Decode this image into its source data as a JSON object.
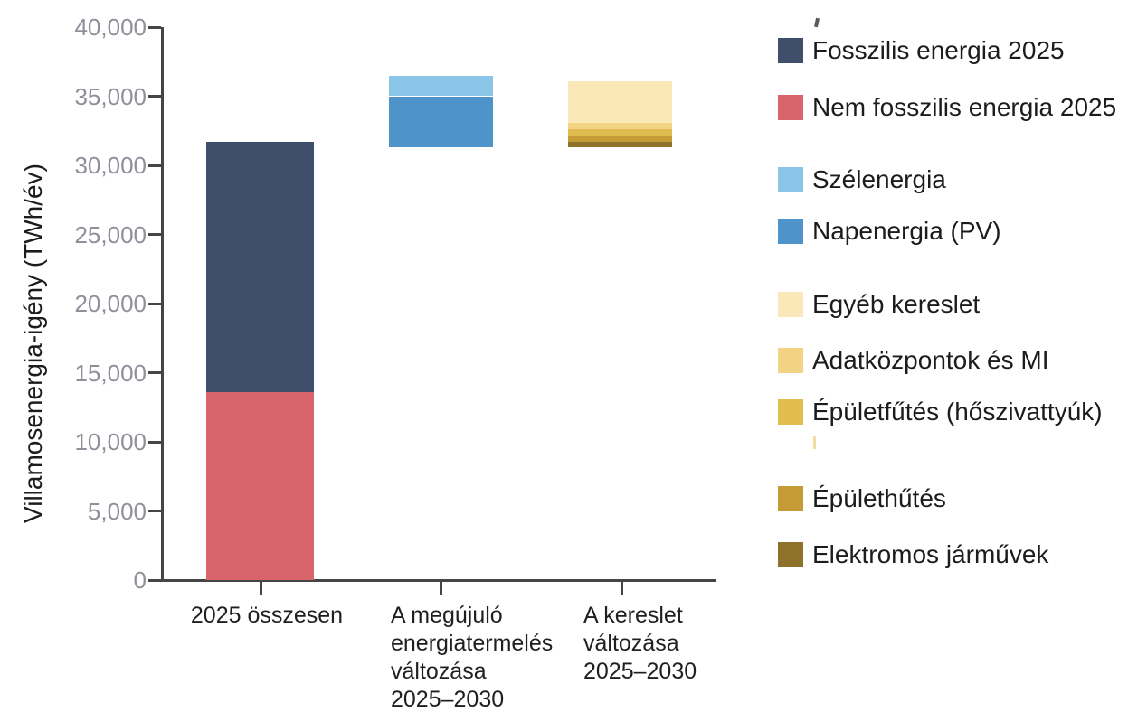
{
  "chart_data": {
    "type": "bar",
    "stacked": true,
    "title": "",
    "xlabel": "",
    "ylabel": "Villamosenergia-igény (TWh/év)",
    "ylim": [
      0,
      40000
    ],
    "ytick_interval": 5000,
    "ytick_labels": [
      "0",
      "5,000",
      "10,000",
      "15,000",
      "20,000",
      "25,000",
      "30,000",
      "35,000",
      "40,000"
    ],
    "grid": false,
    "legend_position": "right",
    "categories": [
      "2025 összesen",
      "A megújuló energiatermelés változása 2025–2030",
      "A kereslet változása 2025–2030"
    ],
    "category_label_lines": [
      [
        "2025 összesen"
      ],
      [
        "A megújuló",
        "energiatermelés",
        "változása",
        "2025–2030"
      ],
      [
        "A kereslet",
        "változása",
        "2025–2030"
      ]
    ],
    "bars": [
      {
        "category": "2025 összesen",
        "segments": [
          {
            "name": "Nem fosszilis energia 2025",
            "color": "#D8656B",
            "from": 0,
            "to": 13600
          },
          {
            "name": "Fosszilis energia 2025",
            "color": "#3E4E6B",
            "from": 13600,
            "to": 31700
          }
        ]
      },
      {
        "category": "A megújuló energiatermelés változása 2025–2030",
        "segments": [
          {
            "name": "Napenergia (PV)",
            "color": "#4E94CB",
            "from": 31300,
            "to": 35000
          },
          {
            "name": "Szélenergia",
            "color": "#8AC4E6",
            "from": 35000,
            "to": 36500
          }
        ]
      },
      {
        "category": "A kereslet változása 2025–2030",
        "segments": [
          {
            "name": "Elektromos járművek",
            "color": "#8E722B",
            "from": 31300,
            "to": 31700
          },
          {
            "name": "Épülethűtés",
            "color": "#C59B35",
            "from": 31700,
            "to": 32150
          },
          {
            "name": "Épületfűtés (hőszivattyúk)",
            "color": "#E1BD50",
            "from": 32150,
            "to": 32600
          },
          {
            "name": "Adatközpontok és MI",
            "color": "#F2D383",
            "from": 32600,
            "to": 33100
          },
          {
            "name": "Egyéb kereslet",
            "color": "#FBE8B8",
            "from": 33100,
            "to": 36100
          }
        ]
      }
    ]
  },
  "legend": {
    "groups": [
      {
        "items": [
          {
            "label": "Fosszilis energia 2025",
            "color": "#3E4E6B"
          },
          {
            "label": "Nem fosszilis energia 2025",
            "color": "#D8656B"
          }
        ]
      },
      {
        "items": [
          {
            "label": "Szélenergia",
            "color": "#8AC4E6"
          },
          {
            "label": "Napenergia (PV)",
            "color": "#4E94CB"
          }
        ]
      },
      {
        "items": [
          {
            "label": "Egyéb kereslet",
            "color": "#FBE8B8"
          },
          {
            "label": "Adatközpontok és MI",
            "color": "#F2D383"
          },
          {
            "label": "Épületfűtés (hőszivattyúk)",
            "color": "#E1BD50"
          },
          {
            "label": "Épülethűtés",
            "color": "#C59B35"
          },
          {
            "label": "Elektromos járművek",
            "color": "#8E722B"
          }
        ]
      }
    ]
  },
  "colors": {
    "axis": "#454545",
    "tick_label": "#8F9099",
    "text": "#1C1C1C",
    "background": "#FFFFFF",
    "stray_mark_dark": "#5A5A5A",
    "stray_mark_yellow": "#F2DF9F"
  }
}
